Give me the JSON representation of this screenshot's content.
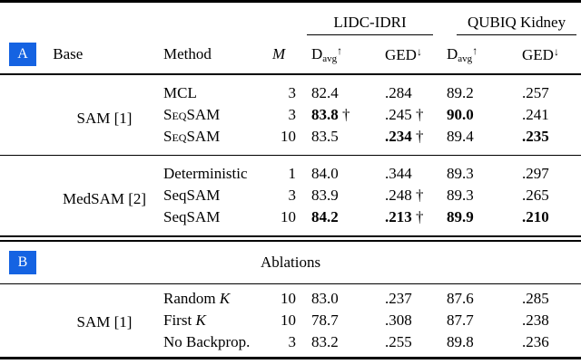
{
  "accent_color": "#1563e2",
  "table": {
    "columns": {
      "base": "Base",
      "method": "Method",
      "m": "M"
    },
    "metric": {
      "d": "D",
      "d_sub": "avg",
      "up": "↑",
      "ged": "GED",
      "down": "↓"
    },
    "datasets": [
      {
        "label": "LIDC-IDRI"
      },
      {
        "label": "QUBIQ Kidney"
      }
    ],
    "sections": [
      {
        "badge": "A",
        "groups": [
          {
            "base": "SAM [1]",
            "rows": [
              {
                "method": "MCL",
                "m": "3",
                "values": [
                  {
                    "v": "82.4"
                  },
                  {
                    "v": ".284"
                  },
                  {
                    "v": "89.2"
                  },
                  {
                    "v": ".257"
                  }
                ]
              },
              {
                "method": "SeqSAM",
                "smallcaps": true,
                "m": "3",
                "values": [
                  {
                    "v": "83.8",
                    "bold": true,
                    "dagger": true
                  },
                  {
                    "v": ".245",
                    "dagger": true
                  },
                  {
                    "v": "90.0",
                    "bold": true
                  },
                  {
                    "v": ".241"
                  }
                ]
              },
              {
                "method": "SeqSAM",
                "smallcaps": true,
                "m": "10",
                "values": [
                  {
                    "v": "83.5"
                  },
                  {
                    "v": ".234",
                    "bold": true,
                    "dagger": true
                  },
                  {
                    "v": "89.4"
                  },
                  {
                    "v": ".235",
                    "bold": true
                  }
                ]
              }
            ]
          },
          {
            "base": "MedSAM [2]",
            "rows": [
              {
                "method": "Deterministic",
                "m": "1",
                "values": [
                  {
                    "v": "84.0"
                  },
                  {
                    "v": ".344"
                  },
                  {
                    "v": "89.3"
                  },
                  {
                    "v": ".297"
                  }
                ]
              },
              {
                "method": "SeqSAM",
                "m": "3",
                "values": [
                  {
                    "v": "83.9"
                  },
                  {
                    "v": ".248",
                    "dagger": true
                  },
                  {
                    "v": "89.3"
                  },
                  {
                    "v": ".265"
                  }
                ]
              },
              {
                "method": "SeqSAM",
                "m": "10",
                "values": [
                  {
                    "v": "84.2",
                    "bold": true
                  },
                  {
                    "v": ".213",
                    "bold": true,
                    "dagger": true
                  },
                  {
                    "v": "89.9",
                    "bold": true
                  },
                  {
                    "v": ".210",
                    "bold": true
                  }
                ]
              }
            ]
          }
        ]
      },
      {
        "badge": "B",
        "title": "Ablations",
        "groups": [
          {
            "base": "SAM [1]",
            "rows": [
              {
                "method": "Random ",
                "italic": "K",
                "m": "10",
                "values": [
                  {
                    "v": "83.0"
                  },
                  {
                    "v": ".237"
                  },
                  {
                    "v": "87.6"
                  },
                  {
                    "v": ".285"
                  }
                ]
              },
              {
                "method": "First ",
                "italic": "K",
                "m": "10",
                "values": [
                  {
                    "v": "78.7"
                  },
                  {
                    "v": ".308"
                  },
                  {
                    "v": "87.7"
                  },
                  {
                    "v": ".238"
                  }
                ]
              },
              {
                "method": "No Backprop.",
                "m": "3",
                "values": [
                  {
                    "v": "83.2"
                  },
                  {
                    "v": ".255"
                  },
                  {
                    "v": "89.8"
                  },
                  {
                    "v": ".236"
                  }
                ]
              }
            ]
          }
        ]
      }
    ]
  }
}
